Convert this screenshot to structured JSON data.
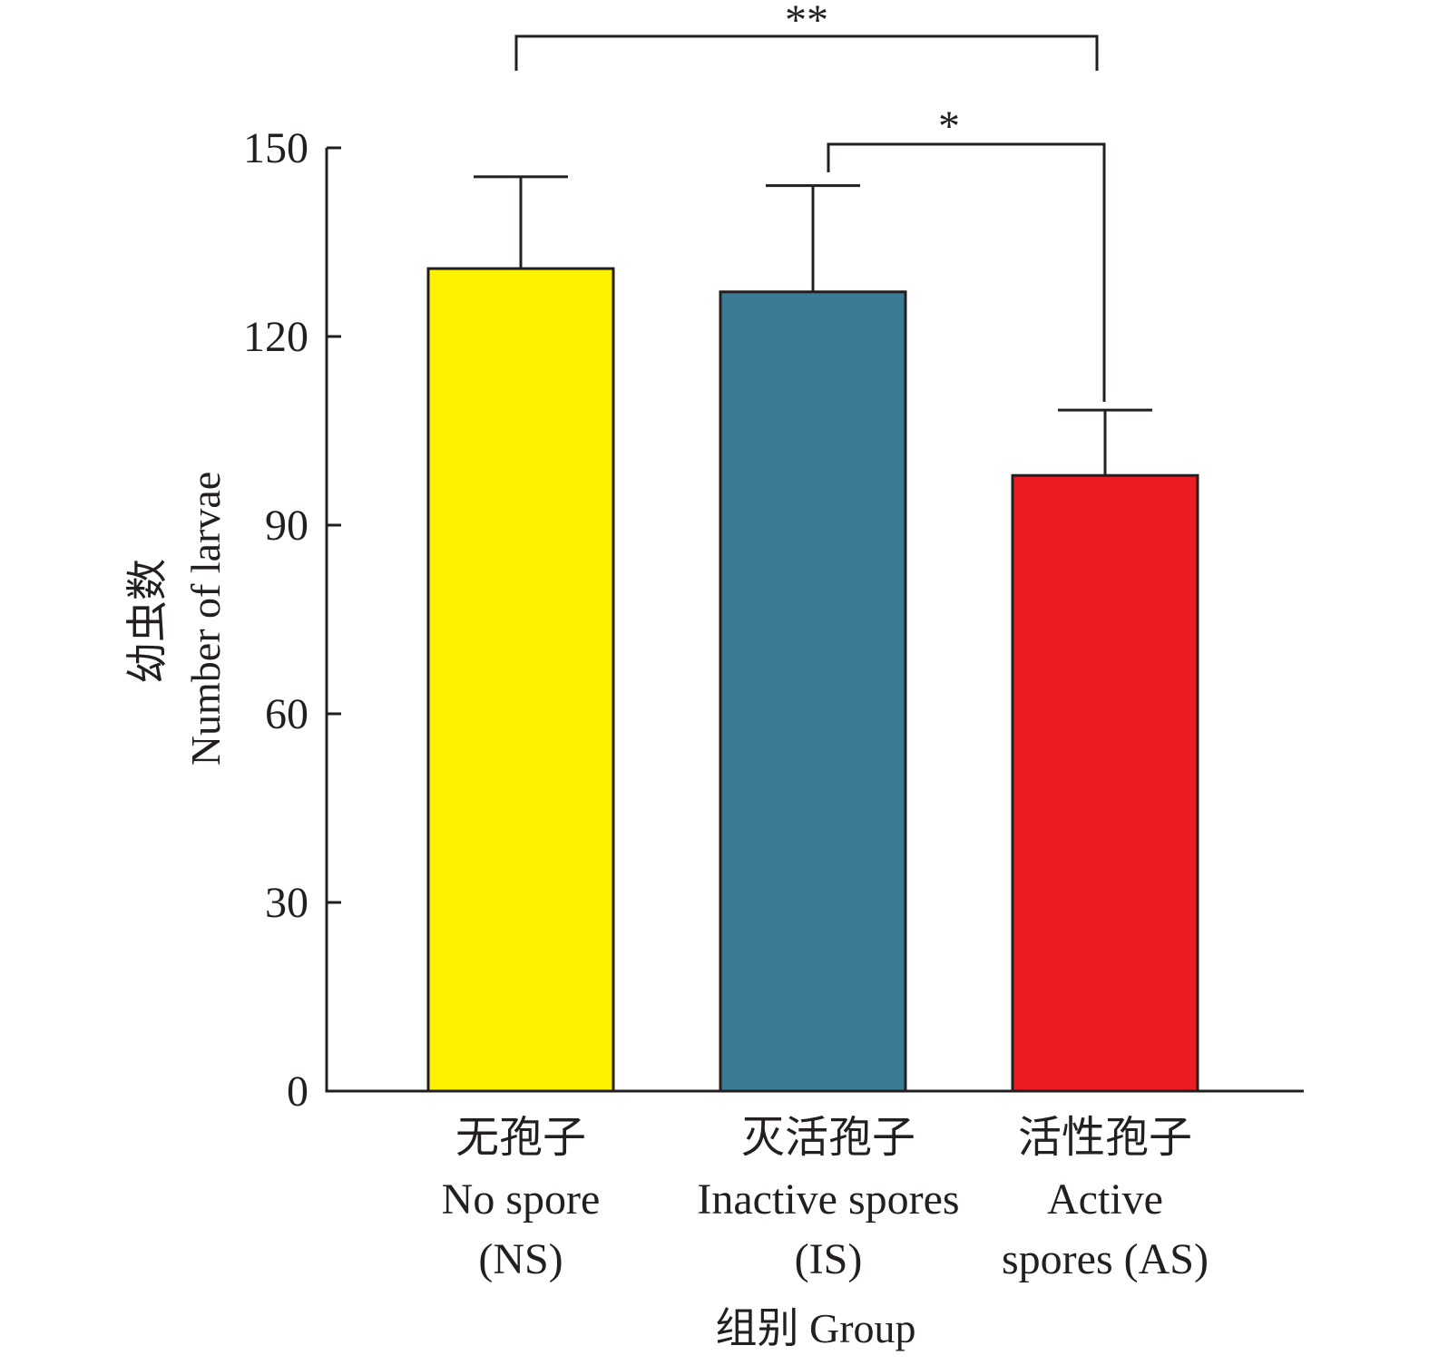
{
  "chart_data": {
    "type": "bar",
    "title": "",
    "xlabel": "组别 Group",
    "ylabel_cn": "幼虫数",
    "ylabel": "Number of larvae",
    "ylim": [
      0,
      150
    ],
    "yticks": [
      0,
      30,
      60,
      90,
      120,
      150
    ],
    "grid": false,
    "categories": [
      {
        "cn": "无孢子",
        "en_lines": [
          "No spore",
          "(NS)"
        ]
      },
      {
        "cn": "灭活孢子",
        "en_lines": [
          "Inactive spores",
          "(IS)"
        ]
      },
      {
        "cn": "活性孢子",
        "en_lines": [
          "Active",
          "spores (AS)"
        ]
      }
    ],
    "values": [
      130.8,
      127.1,
      97.9
    ],
    "error_upper": [
      145.4,
      144.0,
      108.3
    ],
    "colors": [
      "#fff200",
      "#3b7b93",
      "#ed1c24"
    ],
    "annotations": [
      {
        "from": 0,
        "to": 2,
        "label": "**"
      },
      {
        "from": 1,
        "to": 2,
        "label": "*"
      }
    ]
  }
}
